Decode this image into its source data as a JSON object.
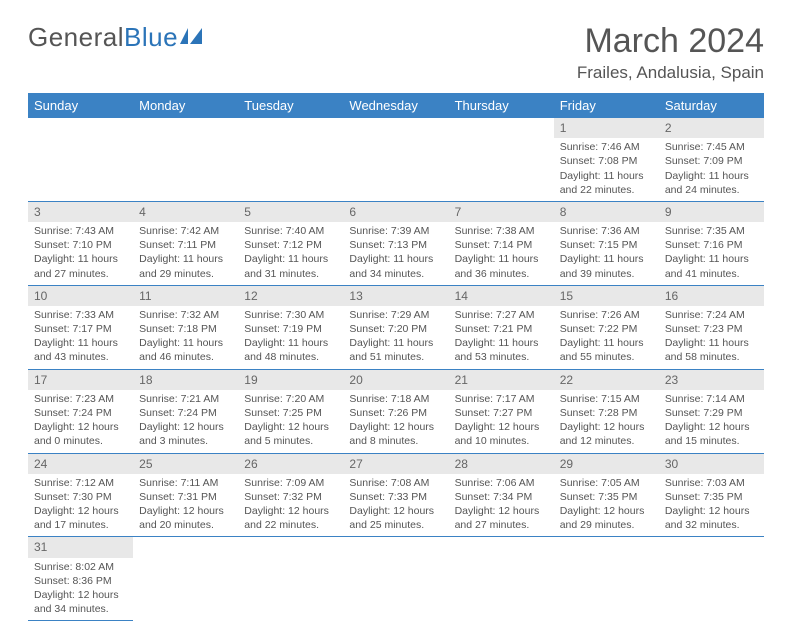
{
  "brand": {
    "part1": "General",
    "part2": "Blue"
  },
  "title": "March 2024",
  "subtitle": "Frailes, Andalusia, Spain",
  "weekdays": [
    "Sunday",
    "Monday",
    "Tuesday",
    "Wednesday",
    "Thursday",
    "Friday",
    "Saturday"
  ],
  "colors": {
    "header_bg": "#3b82c4",
    "header_fg": "#ffffff",
    "daynum_bg": "#e8e8e8",
    "row_border": "#3b82c4",
    "text": "#555555",
    "brand_accent": "#2b74b8"
  },
  "weeks": [
    [
      {
        "blank": true
      },
      {
        "blank": true
      },
      {
        "blank": true
      },
      {
        "blank": true
      },
      {
        "blank": true
      },
      {
        "num": "1",
        "sunrise": "Sunrise: 7:46 AM",
        "sunset": "Sunset: 7:08 PM",
        "day1": "Daylight: 11 hours",
        "day2": "and 22 minutes."
      },
      {
        "num": "2",
        "sunrise": "Sunrise: 7:45 AM",
        "sunset": "Sunset: 7:09 PM",
        "day1": "Daylight: 11 hours",
        "day2": "and 24 minutes."
      }
    ],
    [
      {
        "num": "3",
        "sunrise": "Sunrise: 7:43 AM",
        "sunset": "Sunset: 7:10 PM",
        "day1": "Daylight: 11 hours",
        "day2": "and 27 minutes."
      },
      {
        "num": "4",
        "sunrise": "Sunrise: 7:42 AM",
        "sunset": "Sunset: 7:11 PM",
        "day1": "Daylight: 11 hours",
        "day2": "and 29 minutes."
      },
      {
        "num": "5",
        "sunrise": "Sunrise: 7:40 AM",
        "sunset": "Sunset: 7:12 PM",
        "day1": "Daylight: 11 hours",
        "day2": "and 31 minutes."
      },
      {
        "num": "6",
        "sunrise": "Sunrise: 7:39 AM",
        "sunset": "Sunset: 7:13 PM",
        "day1": "Daylight: 11 hours",
        "day2": "and 34 minutes."
      },
      {
        "num": "7",
        "sunrise": "Sunrise: 7:38 AM",
        "sunset": "Sunset: 7:14 PM",
        "day1": "Daylight: 11 hours",
        "day2": "and 36 minutes."
      },
      {
        "num": "8",
        "sunrise": "Sunrise: 7:36 AM",
        "sunset": "Sunset: 7:15 PM",
        "day1": "Daylight: 11 hours",
        "day2": "and 39 minutes."
      },
      {
        "num": "9",
        "sunrise": "Sunrise: 7:35 AM",
        "sunset": "Sunset: 7:16 PM",
        "day1": "Daylight: 11 hours",
        "day2": "and 41 minutes."
      }
    ],
    [
      {
        "num": "10",
        "sunrise": "Sunrise: 7:33 AM",
        "sunset": "Sunset: 7:17 PM",
        "day1": "Daylight: 11 hours",
        "day2": "and 43 minutes."
      },
      {
        "num": "11",
        "sunrise": "Sunrise: 7:32 AM",
        "sunset": "Sunset: 7:18 PM",
        "day1": "Daylight: 11 hours",
        "day2": "and 46 minutes."
      },
      {
        "num": "12",
        "sunrise": "Sunrise: 7:30 AM",
        "sunset": "Sunset: 7:19 PM",
        "day1": "Daylight: 11 hours",
        "day2": "and 48 minutes."
      },
      {
        "num": "13",
        "sunrise": "Sunrise: 7:29 AM",
        "sunset": "Sunset: 7:20 PM",
        "day1": "Daylight: 11 hours",
        "day2": "and 51 minutes."
      },
      {
        "num": "14",
        "sunrise": "Sunrise: 7:27 AM",
        "sunset": "Sunset: 7:21 PM",
        "day1": "Daylight: 11 hours",
        "day2": "and 53 minutes."
      },
      {
        "num": "15",
        "sunrise": "Sunrise: 7:26 AM",
        "sunset": "Sunset: 7:22 PM",
        "day1": "Daylight: 11 hours",
        "day2": "and 55 minutes."
      },
      {
        "num": "16",
        "sunrise": "Sunrise: 7:24 AM",
        "sunset": "Sunset: 7:23 PM",
        "day1": "Daylight: 11 hours",
        "day2": "and 58 minutes."
      }
    ],
    [
      {
        "num": "17",
        "sunrise": "Sunrise: 7:23 AM",
        "sunset": "Sunset: 7:24 PM",
        "day1": "Daylight: 12 hours",
        "day2": "and 0 minutes."
      },
      {
        "num": "18",
        "sunrise": "Sunrise: 7:21 AM",
        "sunset": "Sunset: 7:24 PM",
        "day1": "Daylight: 12 hours",
        "day2": "and 3 minutes."
      },
      {
        "num": "19",
        "sunrise": "Sunrise: 7:20 AM",
        "sunset": "Sunset: 7:25 PM",
        "day1": "Daylight: 12 hours",
        "day2": "and 5 minutes."
      },
      {
        "num": "20",
        "sunrise": "Sunrise: 7:18 AM",
        "sunset": "Sunset: 7:26 PM",
        "day1": "Daylight: 12 hours",
        "day2": "and 8 minutes."
      },
      {
        "num": "21",
        "sunrise": "Sunrise: 7:17 AM",
        "sunset": "Sunset: 7:27 PM",
        "day1": "Daylight: 12 hours",
        "day2": "and 10 minutes."
      },
      {
        "num": "22",
        "sunrise": "Sunrise: 7:15 AM",
        "sunset": "Sunset: 7:28 PM",
        "day1": "Daylight: 12 hours",
        "day2": "and 12 minutes."
      },
      {
        "num": "23",
        "sunrise": "Sunrise: 7:14 AM",
        "sunset": "Sunset: 7:29 PM",
        "day1": "Daylight: 12 hours",
        "day2": "and 15 minutes."
      }
    ],
    [
      {
        "num": "24",
        "sunrise": "Sunrise: 7:12 AM",
        "sunset": "Sunset: 7:30 PM",
        "day1": "Daylight: 12 hours",
        "day2": "and 17 minutes."
      },
      {
        "num": "25",
        "sunrise": "Sunrise: 7:11 AM",
        "sunset": "Sunset: 7:31 PM",
        "day1": "Daylight: 12 hours",
        "day2": "and 20 minutes."
      },
      {
        "num": "26",
        "sunrise": "Sunrise: 7:09 AM",
        "sunset": "Sunset: 7:32 PM",
        "day1": "Daylight: 12 hours",
        "day2": "and 22 minutes."
      },
      {
        "num": "27",
        "sunrise": "Sunrise: 7:08 AM",
        "sunset": "Sunset: 7:33 PM",
        "day1": "Daylight: 12 hours",
        "day2": "and 25 minutes."
      },
      {
        "num": "28",
        "sunrise": "Sunrise: 7:06 AM",
        "sunset": "Sunset: 7:34 PM",
        "day1": "Daylight: 12 hours",
        "day2": "and 27 minutes."
      },
      {
        "num": "29",
        "sunrise": "Sunrise: 7:05 AM",
        "sunset": "Sunset: 7:35 PM",
        "day1": "Daylight: 12 hours",
        "day2": "and 29 minutes."
      },
      {
        "num": "30",
        "sunrise": "Sunrise: 7:03 AM",
        "sunset": "Sunset: 7:35 PM",
        "day1": "Daylight: 12 hours",
        "day2": "and 32 minutes."
      }
    ],
    [
      {
        "num": "31",
        "sunrise": "Sunrise: 8:02 AM",
        "sunset": "Sunset: 8:36 PM",
        "day1": "Daylight: 12 hours",
        "day2": "and 34 minutes."
      },
      {
        "blank": true
      },
      {
        "blank": true
      },
      {
        "blank": true
      },
      {
        "blank": true
      },
      {
        "blank": true
      },
      {
        "blank": true
      }
    ]
  ]
}
